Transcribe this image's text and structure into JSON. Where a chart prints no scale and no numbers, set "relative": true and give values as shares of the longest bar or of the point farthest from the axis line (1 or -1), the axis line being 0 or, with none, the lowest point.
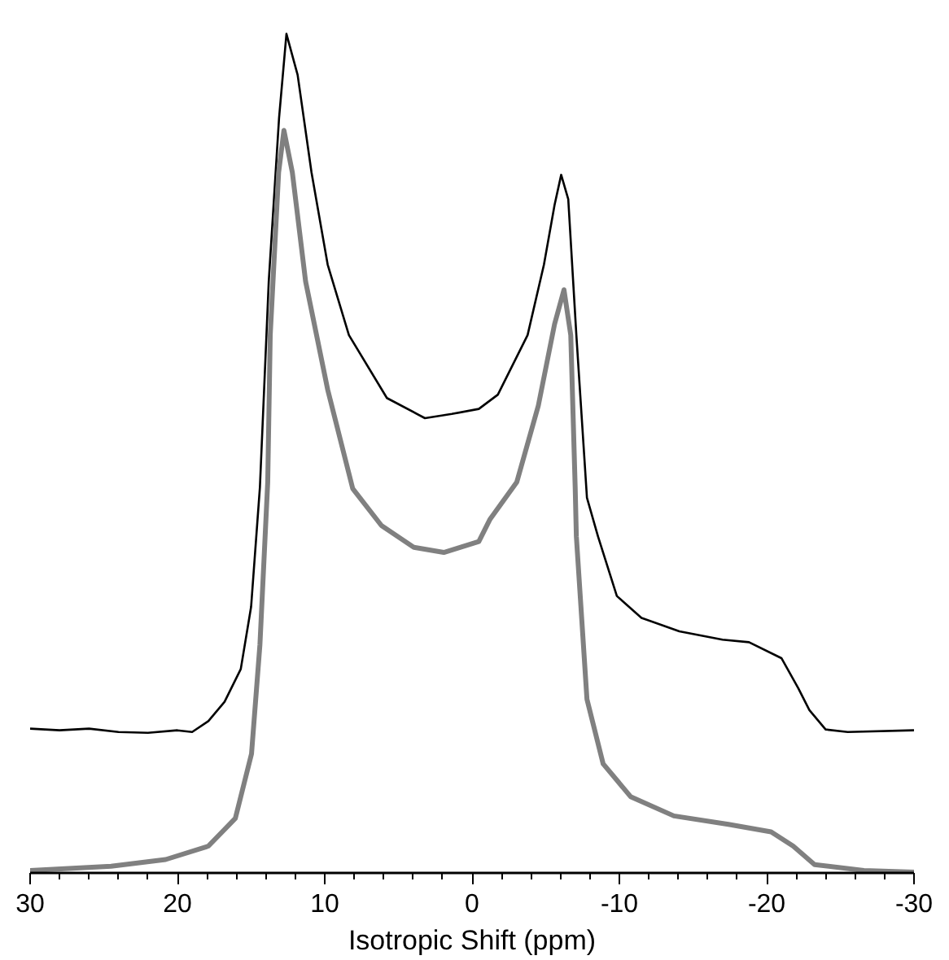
{
  "chart_data": {
    "type": "line",
    "relative": true,
    "xlabel": "Isotropic Shift (ppm)",
    "xlim": [
      30,
      -30
    ],
    "xticks": [
      30,
      {
        "value": 28,
        "label": null
      },
      {
        "value": 26,
        "label": null
      },
      {
        "value": 24,
        "label": null
      },
      {
        "value": 22,
        "label": null
      },
      20,
      {
        "value": 18,
        "label": null
      },
      {
        "value": 16,
        "label": null
      },
      {
        "value": 14,
        "label": null
      },
      {
        "value": 12,
        "label": null
      },
      10,
      {
        "value": 8,
        "label": null
      },
      {
        "value": 6,
        "label": null
      },
      {
        "value": 4,
        "label": null
      },
      {
        "value": 2,
        "label": null
      },
      0,
      {
        "value": -2,
        "label": null
      },
      {
        "value": -4,
        "label": null
      },
      {
        "value": -6,
        "label": null
      },
      {
        "value": -8,
        "label": null
      },
      -10,
      {
        "value": -12,
        "label": null
      },
      {
        "value": -14,
        "label": null
      },
      {
        "value": -16,
        "label": null
      },
      {
        "value": -18,
        "label": null
      },
      -20,
      {
        "value": -22,
        "label": null
      },
      {
        "value": -24,
        "label": null
      },
      {
        "value": -26,
        "label": null
      },
      {
        "value": -28,
        "label": null
      },
      -30
    ],
    "grid": false,
    "marker": "none",
    "line_style": "solid",
    "series": [
      {
        "color": "#000000",
        "x": [
          30,
          28,
          26,
          24,
          22,
          20,
          19,
          17.9,
          16.8,
          15.7,
          15.0,
          14.4,
          13.8,
          13.1,
          12.6,
          11.84,
          10.9,
          9.8,
          8.36,
          5.78,
          3.2,
          1.37,
          -0.46,
          -1.75,
          -3.77,
          -4.88,
          -5.6,
          -6.05,
          -6.53,
          -7.08,
          -7.8,
          -8.55,
          -9.83,
          -11.5,
          -14.07,
          -17.0,
          -18.8,
          -21.0,
          -22.15,
          -22.9,
          -24.0,
          -25.5,
          -30
        ],
        "values": [
          0.172,
          0.17,
          0.172,
          0.168,
          0.167,
          0.17,
          0.168,
          0.181,
          0.204,
          0.243,
          0.317,
          0.46,
          0.705,
          0.9,
          1.0,
          0.951,
          0.835,
          0.725,
          0.641,
          0.566,
          0.542,
          0.547,
          0.553,
          0.57,
          0.641,
          0.725,
          0.796,
          0.832,
          0.803,
          0.641,
          0.447,
          0.401,
          0.33,
          0.304,
          0.288,
          0.278,
          0.275,
          0.256,
          0.22,
          0.194,
          0.171,
          0.168,
          0.17
        ]
      },
      {
        "color": "#808080",
        "x": [
          30,
          24.5,
          20.8,
          17.9,
          16.07,
          14.97,
          14.4,
          13.87,
          13.7,
          13.13,
          12.77,
          12.2,
          11.3,
          9.8,
          8.1,
          6.15,
          3.95,
          1.92,
          -0.46,
          -1.2,
          -3.04,
          -4.5,
          -5.6,
          -6.24,
          -6.7,
          -7.0,
          -7.08,
          -7.8,
          -8.9,
          -10.76,
          -13.7,
          -17.4,
          -20.3,
          -21.8,
          -23.25,
          -26.6,
          -30
        ],
        "values": [
          0.003,
          0.008,
          0.016,
          0.032,
          0.065,
          0.142,
          0.272,
          0.466,
          0.641,
          0.835,
          0.885,
          0.835,
          0.705,
          0.576,
          0.458,
          0.414,
          0.388,
          0.382,
          0.395,
          0.421,
          0.466,
          0.557,
          0.654,
          0.695,
          0.641,
          0.46,
          0.401,
          0.207,
          0.13,
          0.091,
          0.068,
          0.058,
          0.049,
          0.032,
          0.01,
          0.003,
          0.001
        ]
      }
    ]
  }
}
